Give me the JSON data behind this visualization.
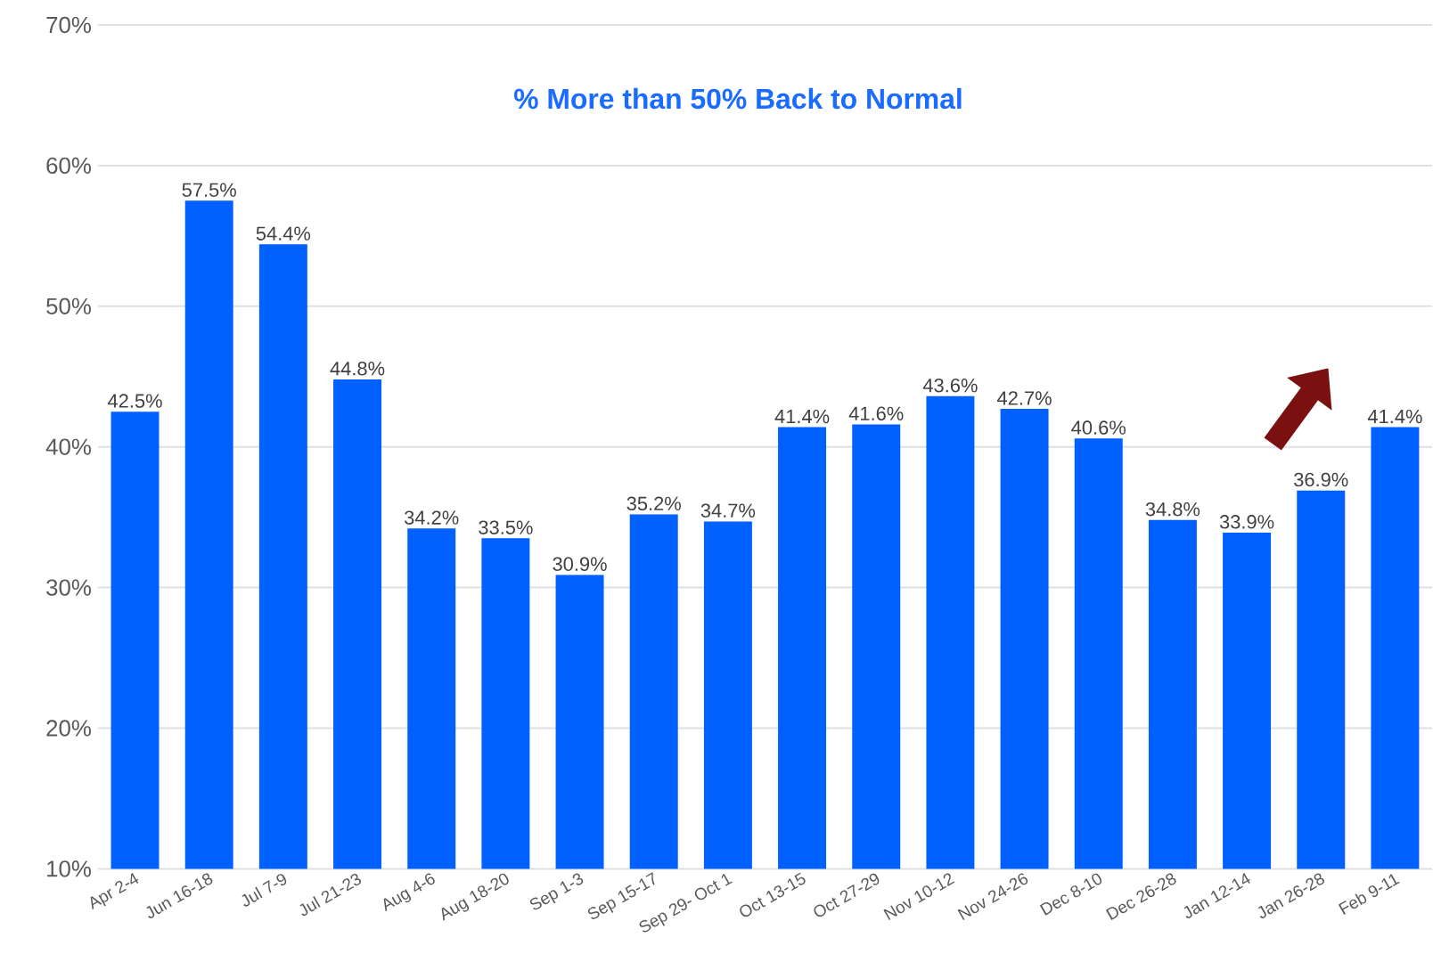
{
  "chart_data": {
    "type": "bar",
    "title": "% More than 50% Back to Normal",
    "color": "#0061ff",
    "categories": [
      "Apr 2-4",
      "Jun 16-18",
      "Jul 7-9",
      "Jul 21-23",
      "Aug 4-6",
      "Aug 18-20",
      "Sep 1-3",
      "Sep 15-17",
      "Sep 29- Oct 1",
      "Oct 13-15",
      "Oct 27-29",
      "Nov 10-12",
      "Nov 24-26",
      "Dec 8-10",
      "Dec 26-28",
      "Jan 12-14",
      "Jan 26-28",
      "Feb 9-11"
    ],
    "values": [
      42.5,
      57.5,
      54.4,
      44.8,
      34.2,
      33.5,
      30.9,
      35.2,
      34.7,
      41.4,
      41.6,
      43.6,
      42.7,
      40.6,
      34.8,
      33.9,
      36.9,
      41.4
    ],
    "value_labels": [
      "42.5%",
      "57.5%",
      "54.4%",
      "44.8%",
      "34.2%",
      "33.5%",
      "30.9%",
      "35.2%",
      "34.7%",
      "41.4%",
      "41.6%",
      "43.6%",
      "42.7%",
      "40.6%",
      "34.8%",
      "33.9%",
      "36.9%",
      "41.4%"
    ],
    "ylim": [
      10,
      70
    ],
    "yticks": [
      {
        "value": 10,
        "label": "10%"
      },
      {
        "value": 20,
        "label": "20%"
      },
      {
        "value": 30,
        "label": "30%"
      },
      {
        "value": 40,
        "label": "40%"
      },
      {
        "value": 50,
        "label": "50%"
      },
      {
        "value": 60,
        "label": "60%"
      },
      {
        "value": 70,
        "label": "70%"
      }
    ],
    "grid": "y"
  }
}
